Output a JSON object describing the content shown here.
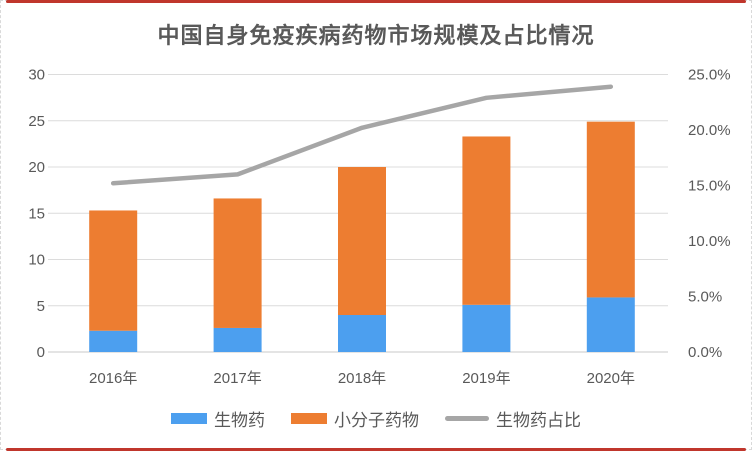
{
  "frame": {
    "red_line_color": "#c0362c",
    "dashed_border_color": "#d9d9d9"
  },
  "chart_data": {
    "type": "bar",
    "subtype": "stacked-column-with-line",
    "title": "中国自身免疫疾病药物市场规模及占比情况",
    "categories": [
      "2016年",
      "2017年",
      "2018年",
      "2019年",
      "2020年"
    ],
    "series": [
      {
        "name": "生物药",
        "type": "bar",
        "stack": true,
        "axis": "left",
        "color": "#4c9fef",
        "values": [
          2.3,
          2.6,
          4.0,
          5.1,
          5.9
        ]
      },
      {
        "name": "小分子药物",
        "type": "bar",
        "stack": true,
        "axis": "left",
        "color": "#ed7d31",
        "values": [
          13.0,
          14.0,
          16.0,
          18.2,
          19.0
        ]
      },
      {
        "name": "生物药占比",
        "type": "line",
        "axis": "right",
        "color": "#a6a6a6",
        "values_pct": [
          15.2,
          16.0,
          20.2,
          22.9,
          23.9
        ]
      }
    ],
    "stack_totals": [
      15.3,
      16.6,
      20.0,
      23.3,
      24.9
    ],
    "left_axis": {
      "min": 0,
      "max": 30,
      "ticks": [
        0,
        5,
        10,
        15,
        20,
        25,
        30
      ]
    },
    "right_axis": {
      "min": 0,
      "max": 25,
      "tick_values": [
        0,
        5,
        10,
        15,
        20,
        25
      ],
      "tick_labels": [
        "0.0%",
        "5.0%",
        "10.0%",
        "15.0%",
        "20.0%",
        "25.0%"
      ]
    },
    "grid": true,
    "gridline_color": "#dcdcdc",
    "axis_line_color": "#c9c9c9",
    "text_color": "#595959",
    "legend_position": "bottom"
  }
}
